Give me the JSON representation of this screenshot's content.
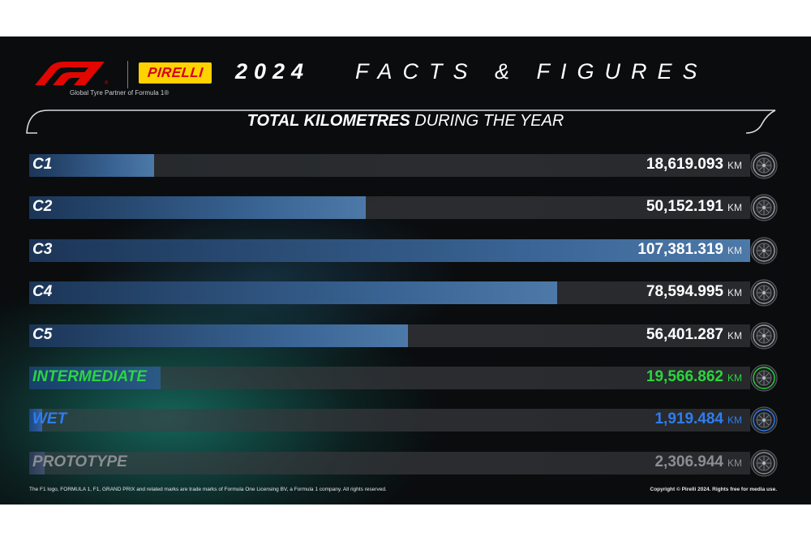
{
  "header": {
    "f1_logo": "F1",
    "pirelli_logo": "PIRELLI",
    "tagline": "Global Tyre Partner of Formula 1®",
    "year": "2024",
    "heading": "FACTS & FIGURES"
  },
  "title": {
    "strong": "TOTAL KILOMETRES",
    "rest": " DURING THE YEAR"
  },
  "colors": {
    "background": "#0a0c0e",
    "dry_bar": "#3a6595",
    "intermediate": "#2bd53f",
    "wet": "#2f7df0",
    "prototype": "#8a8d92",
    "accent_red": "#e10600",
    "pirelli_yellow": "#ffd200"
  },
  "chart_data": {
    "type": "bar",
    "orientation": "horizontal",
    "title": "TOTAL KILOMETRES DURING THE YEAR",
    "unit": "KM",
    "xlim": [
      0,
      107381.319
    ],
    "categories": [
      "C1",
      "C2",
      "C3",
      "C4",
      "C5",
      "INTERMEDIATE",
      "WET",
      "PROTOTYPE"
    ],
    "values": [
      18619.093,
      50152.191,
      107381.319,
      78594.995,
      56401.287,
      19566.862,
      1919.484,
      2306.944
    ],
    "value_labels": [
      "18,619.093",
      "50,152.191",
      "107,381.319",
      "78,594.995",
      "56,401.287",
      "19,566.862",
      "1,919.484",
      "2,306.944"
    ],
    "series_colors": [
      "#3a6595",
      "#3a6595",
      "#3a6595",
      "#3a6595",
      "#3a6595",
      "#2bd53f",
      "#2f7df0",
      "#8a8d92"
    ]
  },
  "footer": {
    "left": "The F1 logo, FORMULA 1, F1, GRAND PRIX and related marks are trade marks of Formula One Licensing BV, a Formula 1 company. All rights reserved.",
    "right": "Copyright © Pirelli 2024. Rights free for media use."
  }
}
